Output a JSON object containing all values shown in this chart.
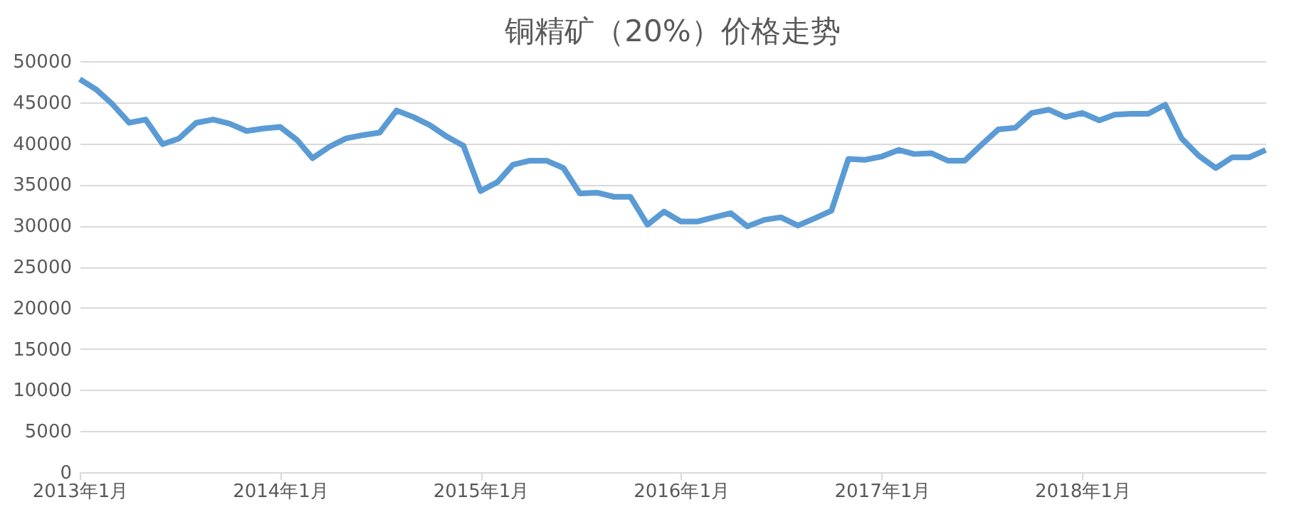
{
  "chart_data": {
    "type": "line",
    "title": "铜精矿（20%）价格走势",
    "x": [
      "2013-01",
      "2013-02",
      "2013-03",
      "2013-04",
      "2013-05",
      "2013-06",
      "2013-07",
      "2013-08",
      "2013-09",
      "2013-10",
      "2013-11",
      "2013-12",
      "2014-01",
      "2014-02",
      "2014-03",
      "2014-04",
      "2014-05",
      "2014-06",
      "2014-07",
      "2014-08",
      "2014-09",
      "2014-10",
      "2014-11",
      "2014-12",
      "2015-01",
      "2015-02",
      "2015-03",
      "2015-04",
      "2015-05",
      "2015-06",
      "2015-07",
      "2015-08",
      "2015-09",
      "2015-10",
      "2015-11",
      "2015-12",
      "2016-01",
      "2016-02",
      "2016-03",
      "2016-04",
      "2016-05",
      "2016-06",
      "2016-07",
      "2016-08",
      "2016-09",
      "2016-10",
      "2016-11",
      "2016-12",
      "2017-01",
      "2017-02",
      "2017-03",
      "2017-04",
      "2017-05",
      "2017-06",
      "2017-07",
      "2017-08",
      "2017-09",
      "2017-10",
      "2017-11",
      "2017-12",
      "2018-01",
      "2018-02",
      "2018-03",
      "2018-04",
      "2018-05",
      "2018-06",
      "2018-07",
      "2018-08",
      "2018-09",
      "2018-10",
      "2018-11",
      "2018-12"
    ],
    "series": [
      {
        "color": "#5b9bd5",
        "values": [
          47800,
          46500,
          44800,
          42500,
          42900,
          39900,
          40600,
          42500,
          42900,
          42400,
          41500,
          41800,
          42000,
          40400,
          38200,
          39600,
          40600,
          41000,
          41300,
          44000,
          43200,
          42200,
          40800,
          39700,
          34200,
          35300,
          37400,
          37900,
          37900,
          37000,
          33900,
          34000,
          33500,
          33500,
          30100,
          31700,
          30500,
          30500,
          31000,
          31500,
          29900,
          30700,
          31000,
          30000,
          30900,
          31800,
          38100,
          38000,
          38400,
          39200,
          38700,
          38800,
          37900,
          37900,
          39800,
          41700,
          41900,
          43700,
          44100,
          43200,
          43700,
          42800,
          43500,
          43600,
          43600,
          44700,
          40600,
          38500,
          37000,
          38300,
          38300,
          39200
        ]
      }
    ],
    "xlim": [
      "2013-01",
      "2018-12"
    ],
    "xticks": [
      {
        "value": "2013-01",
        "label": "2013年1月"
      },
      {
        "value": "2014-01",
        "label": "2014年1月"
      },
      {
        "value": "2015-01",
        "label": "2015年1月"
      },
      {
        "value": "2016-01",
        "label": "2016年1月"
      },
      {
        "value": "2017-01",
        "label": "2017年1月"
      },
      {
        "value": "2018-01",
        "label": "2018年1月"
      }
    ],
    "ylim": [
      0,
      50000
    ],
    "yticks": [
      0,
      5000,
      10000,
      15000,
      20000,
      25000,
      30000,
      35000,
      40000,
      45000,
      50000
    ],
    "grid": "y",
    "marker": "none",
    "line_style": "solid"
  }
}
